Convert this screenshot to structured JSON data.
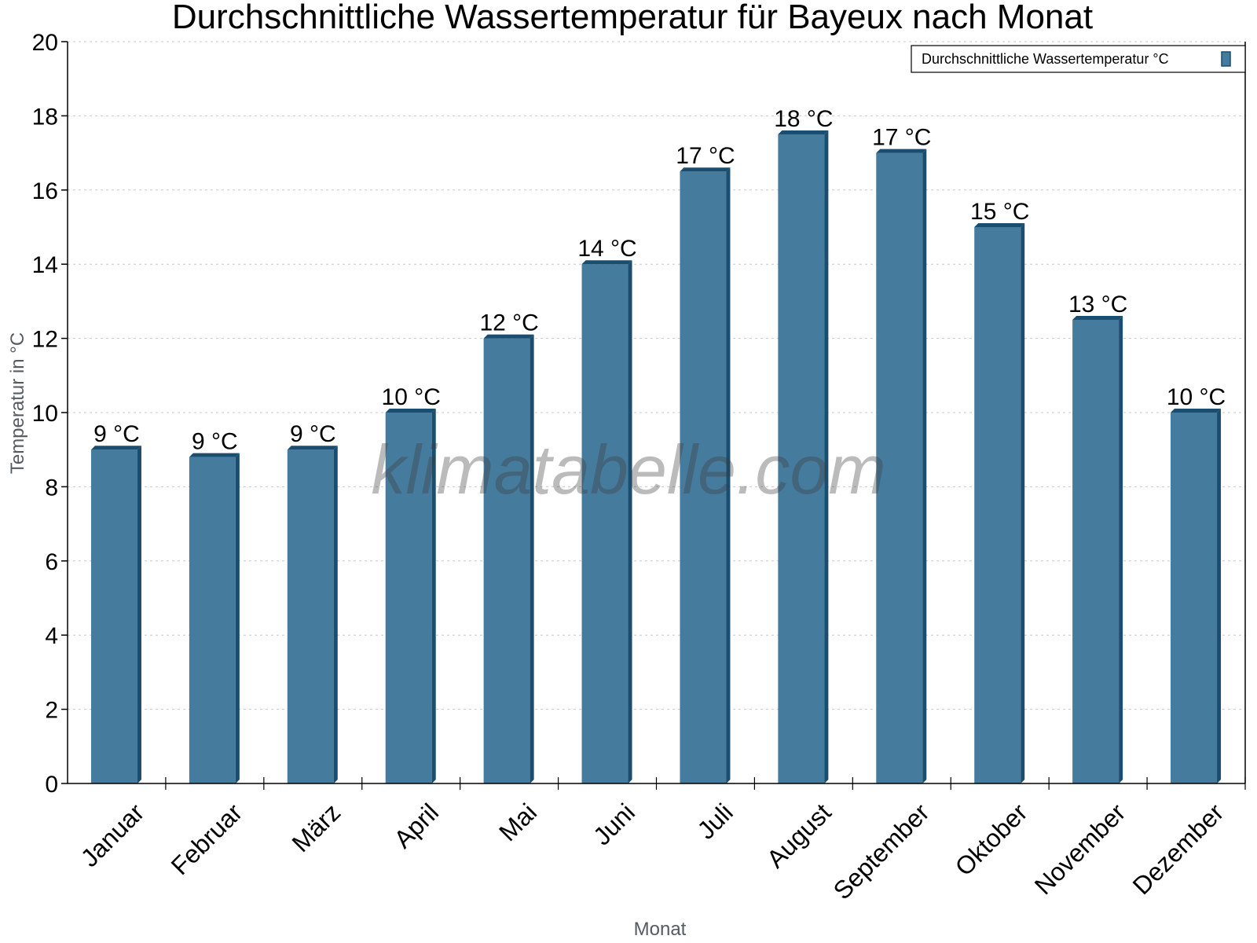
{
  "chart_data": {
    "type": "bar",
    "title": "Durchschnittliche Wassertemperatur für Bayeux nach Monat",
    "xlabel": "Monat",
    "ylabel": "Temperatur in °C",
    "ylim": [
      0,
      20
    ],
    "yticks": [
      0,
      2,
      4,
      6,
      8,
      10,
      12,
      14,
      16,
      18,
      20
    ],
    "grid": true,
    "legend_position": "top-right",
    "categories": [
      "Januar",
      "Februar",
      "März",
      "April",
      "Mai",
      "Juni",
      "Juli",
      "August",
      "September",
      "Oktober",
      "November",
      "Dezember"
    ],
    "series": [
      {
        "name": "Durchschnittliche Wassertemperatur °C",
        "color": "#457b9d",
        "values": [
          9.0,
          8.8,
          9.0,
          10.0,
          12.0,
          14.0,
          16.5,
          17.5,
          17.0,
          15.0,
          12.5,
          10.0
        ],
        "data_labels": [
          "9 °C",
          "9 °C",
          "9 °C",
          "10 °C",
          "12 °C",
          "14 °C",
          "17 °C",
          "18 °C",
          "17 °C",
          "15 °C",
          "13 °C",
          "10 °C"
        ]
      }
    ],
    "watermark": "klimatabelle.com"
  },
  "colors": {
    "bar_front": "#457b9d",
    "bar_side": "#1a4d6e",
    "grid": "#c8c8c8",
    "axis": "#000000"
  }
}
